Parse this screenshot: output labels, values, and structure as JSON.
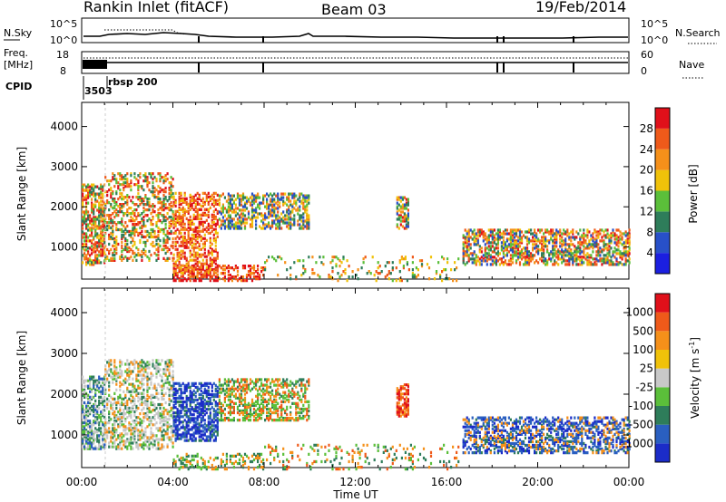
{
  "header": {
    "title": "Rankin Inlet (fitACF)",
    "beam": "Beam 03",
    "date": "19/Feb/2014"
  },
  "strip_panels": {
    "nsky_label": "N.Sky",
    "nsky_ticks": [
      "10^5",
      "10^0"
    ],
    "nsearch_label": "N.Search",
    "nsearch_ticks": [
      "10^5",
      "10^0"
    ],
    "freq_label_1": "Freq.",
    "freq_label_2": "[MHz]",
    "freq_ticks": [
      "18",
      "8"
    ],
    "nave_label": "Nave",
    "nave_ticks": [
      "60",
      "0"
    ],
    "cpid_label": "CPID",
    "cpid_value": "3503",
    "cpid_name": "rbsp 200"
  },
  "chart_data": [
    {
      "type": "heatmap",
      "ylabel": "Slant Range [km]",
      "yticks": [
        1000,
        2000,
        3000,
        4000
      ],
      "ylim": [
        200,
        4600
      ],
      "xlim_hours": [
        0,
        24
      ],
      "colorbar_label": "Power [dB]",
      "colorbar_ticks": [
        4,
        8,
        12,
        16,
        20,
        24,
        28
      ],
      "colorbar_colors": [
        "#1b1fe0",
        "#2850c8",
        "#2e7d5a",
        "#5bbf3a",
        "#f0c20a",
        "#f5901a",
        "#ef5a1a",
        "#e0101a"
      ]
    },
    {
      "type": "heatmap",
      "ylabel": "Slant Range [km]",
      "yticks": [
        1000,
        2000,
        3000,
        4000
      ],
      "ylim": [
        200,
        4600
      ],
      "xlim_hours": [
        0,
        24
      ],
      "colorbar_label": "Velocity [m s",
      "colorbar_label_sup": "-1",
      "colorbar_label_end": "]",
      "colorbar_ticks": [
        "1000",
        "500",
        "100",
        "25",
        "-25",
        "-100",
        "-500",
        "-1000"
      ],
      "colorbar_colors": [
        "#1b2cc8",
        "#2a5fc0",
        "#2e7d5a",
        "#5bbf3a",
        "#c8c8c8",
        "#f0c20a",
        "#f5901a",
        "#ef5a1a",
        "#e0101a"
      ]
    }
  ],
  "x_axis": {
    "ticks": [
      "00:00",
      "04:00",
      "08:00",
      "12:00",
      "16:00",
      "20:00",
      "00:00"
    ],
    "label": "Time UT"
  }
}
